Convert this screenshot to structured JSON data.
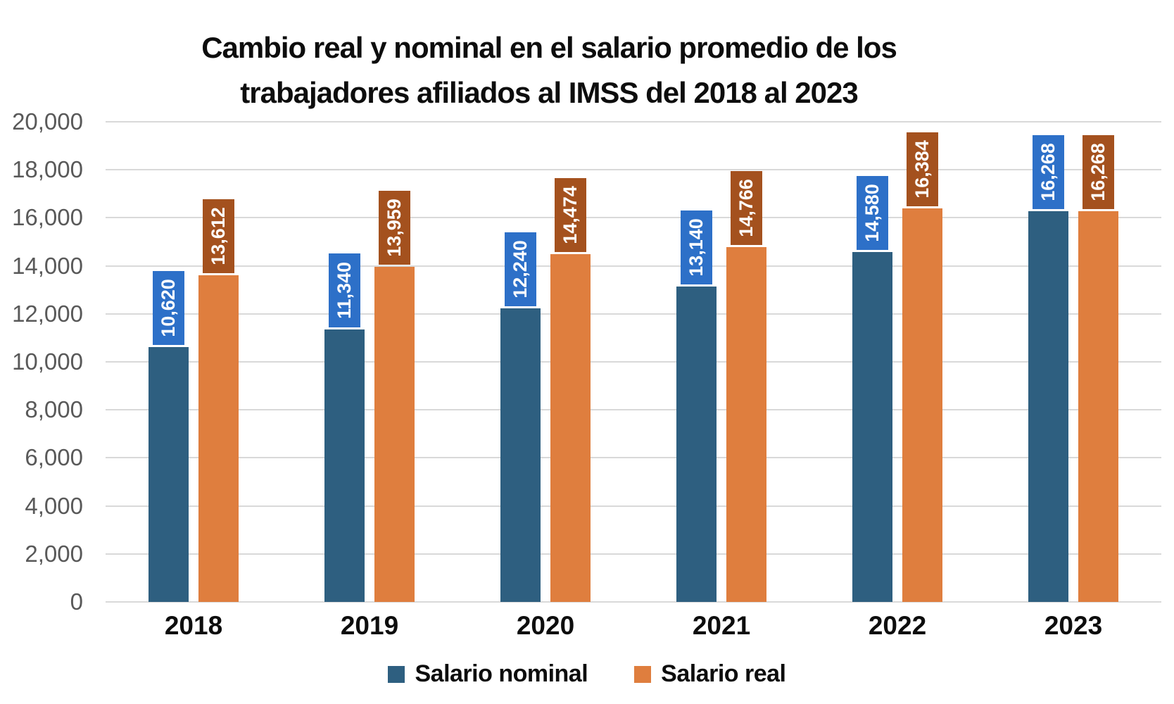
{
  "chart_data": {
    "type": "bar",
    "title_line1": "Cambio real y nominal en el salario promedio de los",
    "title_line2": "trabajadores afiliados al IMSS del 2018 al 2023",
    "categories": [
      "2018",
      "2019",
      "2020",
      "2021",
      "2022",
      "2023"
    ],
    "series": [
      {
        "name": "Salario nominal",
        "values": [
          10620,
          11340,
          12240,
          13140,
          14580,
          16268
        ],
        "labels": [
          "10,620",
          "11,340",
          "12,240",
          "13,140",
          "14,580",
          "16,268"
        ]
      },
      {
        "name": "Salario real",
        "values": [
          13612,
          13959,
          14474,
          14766,
          16384,
          16268
        ],
        "labels": [
          "13,612",
          "13,959",
          "14,474",
          "14,766",
          "16,384",
          "16,268"
        ]
      }
    ],
    "xlabel": "",
    "ylabel": "",
    "ylim": [
      0,
      20000
    ],
    "y_tick_step": 2000,
    "y_ticks": [
      {
        "label": "0",
        "value": 0
      },
      {
        "label": "2,000",
        "value": 2000
      },
      {
        "label": "4,000",
        "value": 4000
      },
      {
        "label": "6,000",
        "value": 6000
      },
      {
        "label": "8,000",
        "value": 8000
      },
      {
        "label": "10,000",
        "value": 10000
      },
      {
        "label": "12,000",
        "value": 12000
      },
      {
        "label": "14,000",
        "value": 14000
      },
      {
        "label": "16,000",
        "value": 16000
      },
      {
        "label": "18,000",
        "value": 18000
      },
      {
        "label": "20,000",
        "value": 20000
      }
    ],
    "grid": "horizontal",
    "legend_position": "bottom",
    "data_label_rotation": 270,
    "colors": {
      "nominal_bar": "#2E5F80",
      "nominal_label": "#2D70C8",
      "real_bar": "#DF7E3E",
      "real_label": "#A4511E",
      "grid": "#D9D9D9",
      "axis_text": "#595959",
      "title_text": "#0d0d0d"
    }
  }
}
